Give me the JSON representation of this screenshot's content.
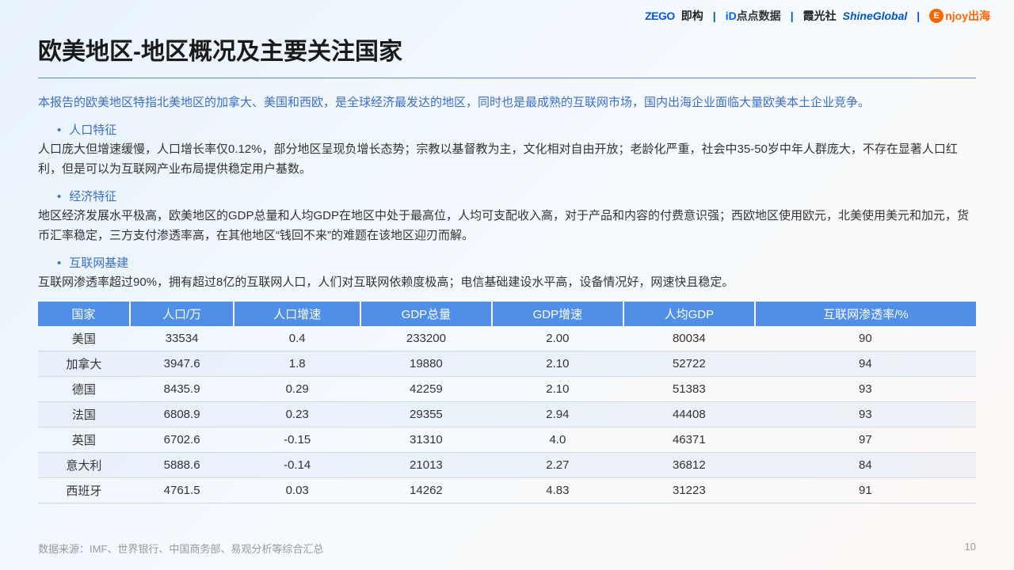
{
  "header": {
    "logos": {
      "zego": "ZEGO",
      "jigou": "即构",
      "diandian_icon": "iD",
      "diandian": "点点数据",
      "xiaguang": "霞光社",
      "shine": "ShineGlobal",
      "enjoy_e": "E",
      "enjoy": "njoy出海"
    }
  },
  "title": "欧美地区-地区概况及主要关注国家",
  "intro": "本报告的欧美地区特指北美地区的加拿大、美国和西欧，是全球经济最发达的地区，同时也是最成熟的互联网市场，国内出海企业面临大量欧美本土企业竞争。",
  "sections": [
    {
      "label": "人口特征",
      "text": "人口庞大但增速缓慢，人口增长率仅0.12%，部分地区呈现负增长态势；宗教以基督教为主，文化相对自由开放；老龄化严重，社会中35-50岁中年人群庞大，不存在显著人口红利，但是可以为互联网产业布局提供稳定用户基数。"
    },
    {
      "label": "经济特征",
      "text": "地区经济发展水平极高，欧美地区的GDP总量和人均GDP在地区中处于最高位，人均可支配收入高，对于产品和内容的付费意识强；西欧地区使用欧元，北美使用美元和加元，货币汇率稳定，三方支付渗透率高，在其他地区“钱回不来”的难题在该地区迎刃而解。"
    },
    {
      "label": "互联网基建",
      "text": "互联网渗透率超过90%，拥有超过8亿的互联网人口，人们对互联网依赖度极高；电信基础建设水平高，设备情况好，网速快且稳定。"
    }
  ],
  "table": {
    "columns": [
      "国家",
      "人口/万",
      "人口增速",
      "GDP总量",
      "GDP增速",
      "人均GDP",
      "互联网渗透率/%"
    ],
    "rows": [
      [
        "美国",
        "33534",
        "0.4",
        "233200",
        "2.00",
        "80034",
        "90"
      ],
      [
        "加拿大",
        "3947.6",
        "1.8",
        "19880",
        "2.10",
        "52722",
        "94"
      ],
      [
        "德国",
        "8435.9",
        "0.29",
        "42259",
        "2.10",
        "51383",
        "93"
      ],
      [
        "法国",
        "6808.9",
        "0.23",
        "29355",
        "2.94",
        "44408",
        "93"
      ],
      [
        "英国",
        "6702.6",
        "-0.15",
        "31310",
        "4.0",
        "46371",
        "97"
      ],
      [
        "意大利",
        "5888.6",
        "-0.14",
        "21013",
        "2.27",
        "36812",
        "84"
      ],
      [
        "西班牙",
        "4761.5",
        "0.03",
        "14262",
        "4.83",
        "31223",
        "91"
      ]
    ],
    "header_bg": "#4f8fe8",
    "header_color": "#ffffff",
    "row_alt_bg": "rgba(220,230,245,0.4)",
    "border_color": "#d0d8e4"
  },
  "footer": {
    "source": "数据来源：IMF、世界银行、中国商务部、易观分析等综合汇总",
    "page": "10"
  }
}
